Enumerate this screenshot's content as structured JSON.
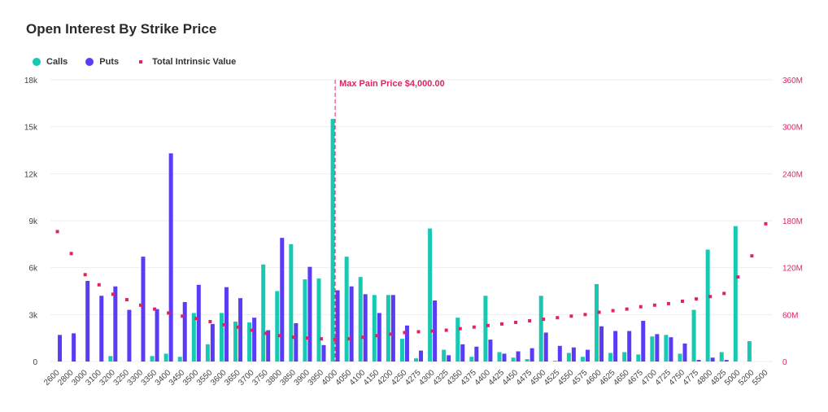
{
  "chart_data": {
    "type": "bar",
    "title": "Open Interest By Strike Price",
    "categories": [
      "2600",
      "2800",
      "3000",
      "3100",
      "3200",
      "3250",
      "3300",
      "3350",
      "3400",
      "3450",
      "3500",
      "3550",
      "3600",
      "3650",
      "3700",
      "3750",
      "3800",
      "3850",
      "3900",
      "3950",
      "4000",
      "4050",
      "4100",
      "4150",
      "4200",
      "4250",
      "4275",
      "4300",
      "4325",
      "4350",
      "4375",
      "4400",
      "4425",
      "4450",
      "4475",
      "4500",
      "4525",
      "4550",
      "4575",
      "4600",
      "4625",
      "4650",
      "4675",
      "4700",
      "4725",
      "4750",
      "4775",
      "4800",
      "4825",
      "5000",
      "5200",
      "5500"
    ],
    "series": [
      {
        "name": "Calls",
        "type": "bar",
        "axis": "left",
        "values": [
          0,
          0,
          0,
          0,
          350,
          0,
          0,
          350,
          500,
          300,
          3100,
          1100,
          3100,
          2550,
          2500,
          6200,
          4500,
          7500,
          5250,
          5300,
          15500,
          6700,
          5400,
          4250,
          4250,
          1450,
          200,
          8500,
          750,
          2800,
          300,
          4200,
          600,
          250,
          150,
          4200,
          50,
          550,
          300,
          4950,
          550,
          600,
          450,
          1600,
          1700,
          500,
          3300,
          7150,
          600,
          8650,
          1300,
          0
        ]
      },
      {
        "name": "Puts",
        "type": "bar",
        "axis": "left",
        "values": [
          1700,
          1800,
          5150,
          4200,
          4800,
          3300,
          6700,
          3350,
          13300,
          3800,
          4900,
          2400,
          4750,
          4050,
          2800,
          2000,
          7900,
          2450,
          6050,
          1050,
          4550,
          4800,
          4300,
          3100,
          4250,
          2300,
          700,
          3900,
          400,
          1100,
          950,
          1400,
          500,
          650,
          850,
          1850,
          1000,
          900,
          750,
          2250,
          1950,
          1950,
          2600,
          1750,
          1550,
          1150,
          100,
          250,
          100,
          0,
          0,
          0
        ]
      },
      {
        "name": "Total Intrinsic Value",
        "type": "scatter",
        "axis": "right",
        "values": [
          166,
          138,
          111,
          98,
          86,
          79,
          72,
          67,
          62,
          58,
          55,
          51,
          47,
          44,
          40,
          36,
          33,
          31,
          30,
          29,
          28,
          29,
          31,
          33,
          35,
          37,
          38,
          39,
          40,
          42,
          44,
          46,
          48,
          50,
          52,
          54,
          56,
          58,
          60,
          63,
          65,
          67,
          70,
          72,
          74,
          77,
          80,
          83,
          87,
          108,
          135,
          176
        ]
      }
    ],
    "ylim_left": [
      0,
      18000
    ],
    "ylim_right": [
      0,
      360
    ],
    "y_ticks_left": [
      "0",
      "3k",
      "6k",
      "9k",
      "12k",
      "15k",
      "18k"
    ],
    "y_ticks_right": [
      "0",
      "60M",
      "120M",
      "180M",
      "240M",
      "300M",
      "360M"
    ],
    "annotation": {
      "label": "Max Pain Price $4,000.00",
      "category": "4000"
    },
    "grid": true,
    "legend": "top-left",
    "colors": {
      "calls": "#17c9b2",
      "puts": "#5b3cf5",
      "intrinsic": "#e0245e",
      "grid": "#eeeeee"
    }
  },
  "legend_items": {
    "calls": "Calls",
    "puts": "Puts",
    "intrinsic": "Total Intrinsic Value"
  }
}
